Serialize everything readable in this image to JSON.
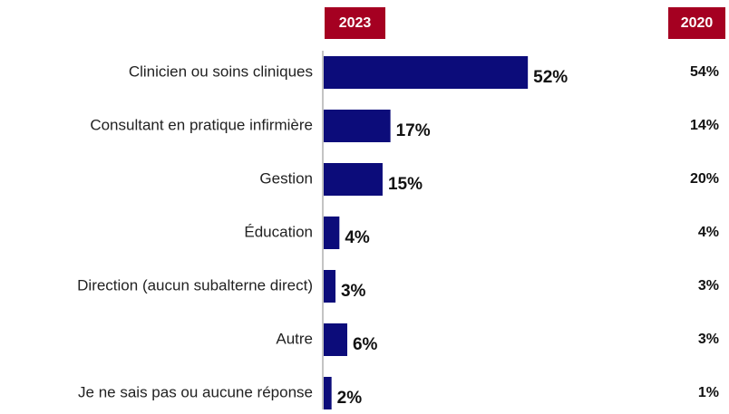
{
  "chart_data": {
    "type": "bar",
    "orientation": "horizontal",
    "categories": [
      "Clinicien ou soins cliniques",
      "Consultant en pratique infirmière",
      "Gestion",
      "Éducation",
      "Direction (aucun subalterne direct)",
      "Autre",
      "Je ne sais pas ou aucune réponse"
    ],
    "header_color": "#a50021",
    "series": [
      {
        "name": "2023",
        "color": "#0c0c7a",
        "values": [
          52,
          17,
          15,
          4,
          3,
          6,
          2
        ],
        "value_labels": [
          "52%",
          "17%",
          "15%",
          "4%",
          "3%",
          "6%",
          "2%"
        ]
      },
      {
        "name": "2020",
        "values": [
          54,
          14,
          20,
          4,
          3,
          3,
          1
        ],
        "value_labels": [
          "54%",
          "14%",
          "20%",
          "4%",
          "3%",
          "3%",
          "1%"
        ]
      }
    ]
  }
}
